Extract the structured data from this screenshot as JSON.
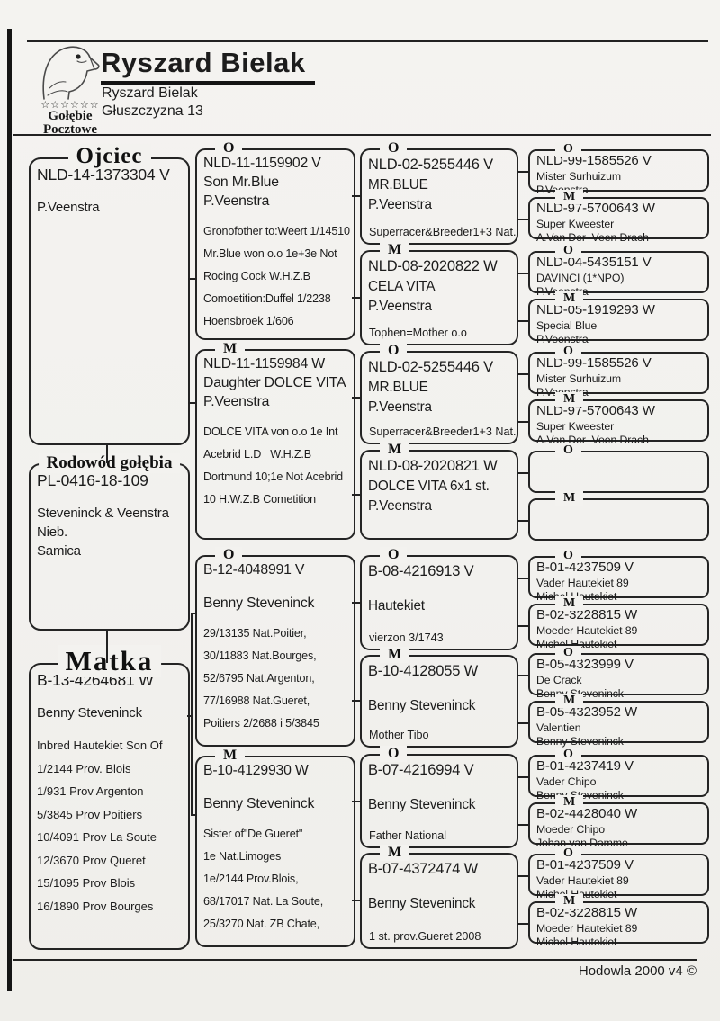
{
  "header": {
    "title": "Ryszard Bielak",
    "address_line1": "Ryszard Bielak",
    "address_line2": "Głuszczyzna 13",
    "logo": {
      "icon": "pigeon-head-sketch",
      "stars": "☆☆☆☆☆☆",
      "caption_line1": "Gołębie",
      "caption_line2": "Pocztowe"
    }
  },
  "footer": {
    "credit": "Hodowla 2000 v4 ©"
  },
  "pedigree": {
    "father": {
      "title": "Ojciec",
      "lines": [
        "NLD-14-1373304 V",
        "",
        "P.Veenstra"
      ]
    },
    "subject": {
      "title": "Rodowód gołębia",
      "lines": [
        "PL-0416-18-109",
        "",
        "Steveninck & Veenstra",
        "Nieb.",
        "Samica"
      ]
    },
    "mother": {
      "title": "Matka",
      "lines": [
        "B-13-4264681 W",
        "",
        "Benny Steveninck"
      ],
      "details": [
        "Inbred Hautekiet Son Of",
        "1/2144 Prov. Blois",
        "1/931 Prov Argenton",
        "5/3845 Prov Poitiers",
        "10/4091 Prov La Soute",
        "12/3670 Prov Queret",
        "15/1095 Prov Blois",
        "16/1890 Prov Bourges"
      ]
    },
    "gen2": [
      {
        "label": "O",
        "main": [
          "NLD-11-1159902 V",
          "Son Mr.Blue",
          "P.Veenstra"
        ],
        "details": [
          "Gronofother to:Weert 1/14510",
          "Mr.Blue won o.o 1e+3e Not",
          "Rocing Cock W.H.Z.B",
          "Comoetition:Duffel 1/2238",
          "Hoensbroek 1/606"
        ]
      },
      {
        "label": "M",
        "main": [
          "NLD-11-1159984 W",
          "Daughter DOLCE VITA",
          "P.Veenstra"
        ],
        "details": [
          "DOLCE VITA von o.o 1e Int",
          "Acebrid L.D   W.H.Z.B",
          "Dortmund 10;1e Not Acebrid",
          "10 H.W.Z.B Cometition"
        ]
      },
      {
        "label": "O",
        "main": [
          "B-12-4048991 V",
          "",
          "Benny Steveninck"
        ],
        "details": [
          "29/13135 Nat.Poitier,",
          "30/11883 Nat.Bourges,",
          "52/6795 Nat.Argenton,",
          "77/16988 Nat.Gueret,",
          "Poitiers 2/2688 i 5/3845"
        ]
      },
      {
        "label": "M",
        "main": [
          "B-10-4129930 W",
          "",
          "Benny Steveninck"
        ],
        "details": [
          "Sister of\"De Gueret\"",
          "1e Nat.Limoges",
          "1e/2144 Prov.Blois,",
          "68/17017 Nat. La Soute,",
          "25/3270 Nat. ZB Chate,"
        ]
      }
    ],
    "gen3": [
      {
        "label": "O",
        "main": [
          "NLD-02-5255446 V",
          "MR.BLUE",
          "P.Veenstra"
        ],
        "details": [
          "Superracer&Breeder1+3 Nat."
        ]
      },
      {
        "label": "M",
        "main": [
          "NLD-08-2020822 W",
          "CELA VITA",
          "P.Veenstra"
        ],
        "details": [
          "Tophen=Mother o.o"
        ]
      },
      {
        "label": "O",
        "main": [
          "NLD-02-5255446 V",
          "MR.BLUE",
          "P.Veenstra"
        ],
        "details": [
          "Superracer&Breeder1+3 Nat."
        ]
      },
      {
        "label": "M",
        "main": [
          "NLD-08-2020821 W",
          "DOLCE VITA 6x1 st.",
          "P.Veenstra"
        ],
        "details": []
      },
      {
        "label": "O",
        "main": [
          "B-08-4216913 V",
          "",
          "Hautekiet"
        ],
        "details": [
          "vierzon 3/1743"
        ]
      },
      {
        "label": "M",
        "main": [
          "B-10-4128055 W",
          "",
          "Benny Steveninck"
        ],
        "details": [
          "Mother Tibo"
        ]
      },
      {
        "label": "O",
        "main": [
          "B-07-4216994 V",
          "",
          "Benny Steveninck"
        ],
        "details": [
          "Father National"
        ]
      },
      {
        "label": "M",
        "main": [
          "B-07-4372474 W",
          "",
          "Benny Steveninck"
        ],
        "details": [
          "1 st. prov.Gueret 2008"
        ]
      }
    ],
    "gen4": [
      {
        "label": "O",
        "lines": [
          "NLD-99-1585526 V",
          "Mister Surhuizum",
          "P.Veenstra"
        ]
      },
      {
        "label": "M",
        "lines": [
          "NLD-97-5700643 W",
          "Super Kweester",
          "A.Van Der  Veen Drach"
        ]
      },
      {
        "label": "O",
        "lines": [
          "NLD-04-5435151 V",
          "DAVINCI (1*NPO)",
          "P.Veenstra"
        ]
      },
      {
        "label": "M",
        "lines": [
          "NLD-05-1919293 W",
          "Special Blue",
          "P.Veenstra"
        ]
      },
      {
        "label": "O",
        "lines": [
          "NLD-99-1585526 V",
          "Mister Surhuizum",
          "P.Veenstra"
        ]
      },
      {
        "label": "M",
        "lines": [
          "NLD-97-5700643 W",
          "Super Kweester",
          "A.Van Der  Veen Drach"
        ]
      },
      {
        "label": "O",
        "lines": []
      },
      {
        "label": "M",
        "lines": []
      },
      {
        "label": "O",
        "lines": [
          "B-01-4237509 V",
          "Vader Hautekiet 89",
          "Michel Hautekiet"
        ]
      },
      {
        "label": "M",
        "lines": [
          "B-02-3228815 W",
          "Moeder Hautekiet 89",
          "Michel Hautekiet"
        ]
      },
      {
        "label": "O",
        "lines": [
          "B-05-4323999 V",
          "De Crack",
          "Benny Steveninck"
        ]
      },
      {
        "label": "M",
        "lines": [
          "B-05-4323952 W",
          "Valentien",
          "Benny Steveninck"
        ]
      },
      {
        "label": "O",
        "lines": [
          "B-01-4237419 V",
          "Vader Chipo",
          "Benny Steveninck"
        ]
      },
      {
        "label": "M",
        "lines": [
          "B-02-4428040 W",
          "Moeder Chipo",
          "Johan van Damme"
        ]
      },
      {
        "label": "O",
        "lines": [
          "B-01-4237509 V",
          "Vader Hautekiet 89",
          "Michel Hautekiet"
        ]
      },
      {
        "label": "M",
        "lines": [
          "B-02-3228815 W",
          "Moeder Hautekiet 89",
          "Michel Hautekiet"
        ]
      }
    ]
  }
}
